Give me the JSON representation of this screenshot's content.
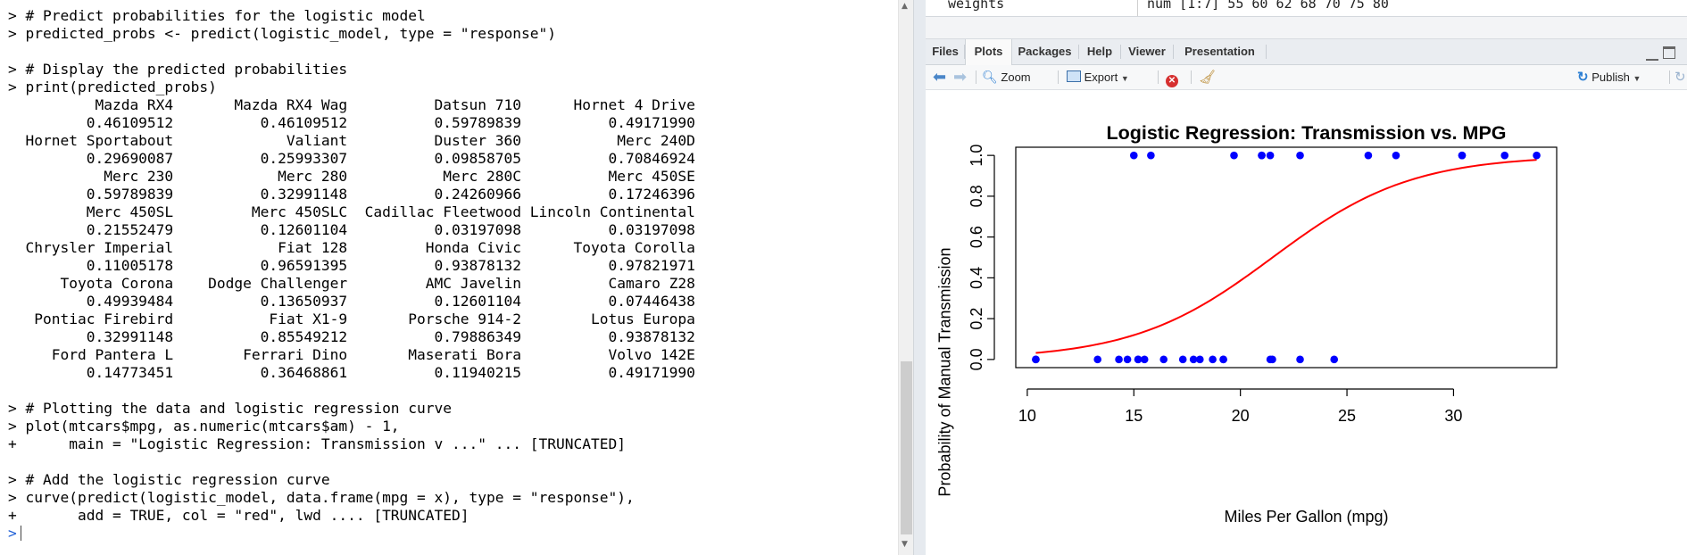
{
  "console": {
    "lines": [
      "> # Predict probabilities for the logistic model",
      "> predicted_probs <- predict(logistic_model, type = \"response\")",
      "",
      "> # Display the predicted probabilities",
      "> print(predicted_probs)",
      "          Mazda RX4       Mazda RX4 Wag          Datsun 710      Hornet 4 Drive",
      "         0.46109512          0.46109512          0.59789839          0.49171990",
      "  Hornet Sportabout             Valiant          Duster 360           Merc 240D",
      "         0.29690087          0.25993307          0.09858705          0.70846924",
      "           Merc 230            Merc 280           Merc 280C          Merc 450SE",
      "         0.59789839          0.32991148          0.24260966          0.17246396",
      "         Merc 450SL         Merc 450SLC  Cadillac Fleetwood Lincoln Continental",
      "         0.21552479          0.12601104          0.03197098          0.03197098",
      "  Chrysler Imperial            Fiat 128         Honda Civic      Toyota Corolla",
      "         0.11005178          0.96591395          0.93878132          0.97821971",
      "      Toyota Corona    Dodge Challenger         AMC Javelin          Camaro Z28",
      "         0.49939484          0.13650937          0.12601104          0.07446438",
      "   Pontiac Firebird           Fiat X1-9       Porsche 914-2        Lotus Europa",
      "         0.32991148          0.85549212          0.79886349          0.93878132",
      "     Ford Pantera L        Ferrari Dino       Maserati Bora          Volvo 142E",
      "         0.14773451          0.36468861          0.11940215          0.49171990",
      "",
      "> # Plotting the data and logistic regression curve",
      "> plot(mtcars$mpg, as.numeric(mtcars$am) - 1,",
      "+      main = \"Logistic Regression: Transmission v ...\" ... [TRUNCATED]",
      "",
      "> # Add the logistic regression curve",
      "> curve(predict(logistic_model, data.frame(mpg = x), type = \"response\"),",
      "+       add = TRUE, col = \"red\", lwd .... [TRUNCATED]"
    ],
    "prompt": ">"
  },
  "environment": {
    "row_name": "weights",
    "row_value": "num [1:7] 55 60 62 68 70 75 80"
  },
  "tabs": [
    "Files",
    "Plots",
    "Packages",
    "Help",
    "Viewer",
    "Presentation"
  ],
  "active_tab": "Plots",
  "toolbar": {
    "zoom_label": "Zoom",
    "export_label": "Export",
    "publish_label": "Publish"
  },
  "chart_data": {
    "type": "scatter",
    "title": "Logistic Regression: Transmission vs. MPG",
    "xlabel": "Miles Per Gallon (mpg)",
    "ylabel": "Probability of Manual Transmission",
    "xlim": [
      10.4,
      33.9
    ],
    "ylim": [
      0,
      1
    ],
    "xticks": [
      10,
      15,
      20,
      25,
      30
    ],
    "yticks": [
      "0.0",
      "0.2",
      "0.4",
      "0.6",
      "0.8",
      "1.0"
    ],
    "points": [
      [
        21.0,
        1
      ],
      [
        21.0,
        1
      ],
      [
        22.8,
        1
      ],
      [
        21.4,
        0
      ],
      [
        18.7,
        0
      ],
      [
        18.1,
        0
      ],
      [
        14.3,
        0
      ],
      [
        24.4,
        0
      ],
      [
        22.8,
        0
      ],
      [
        19.2,
        0
      ],
      [
        17.8,
        0
      ],
      [
        16.4,
        0
      ],
      [
        17.3,
        0
      ],
      [
        15.2,
        0
      ],
      [
        10.4,
        0
      ],
      [
        10.4,
        0
      ],
      [
        14.7,
        0
      ],
      [
        32.4,
        1
      ],
      [
        30.4,
        1
      ],
      [
        33.9,
        1
      ],
      [
        21.5,
        0
      ],
      [
        15.5,
        0
      ],
      [
        15.2,
        0
      ],
      [
        13.3,
        0
      ],
      [
        19.2,
        0
      ],
      [
        27.3,
        1
      ],
      [
        26.0,
        1
      ],
      [
        30.4,
        1
      ],
      [
        15.8,
        1
      ],
      [
        19.7,
        1
      ],
      [
        15.0,
        1
      ],
      [
        21.4,
        1
      ]
    ],
    "point_color": "#0000ff",
    "curve": {
      "intercept": -6.604,
      "slope": 0.307,
      "color": "#ff0000"
    }
  }
}
